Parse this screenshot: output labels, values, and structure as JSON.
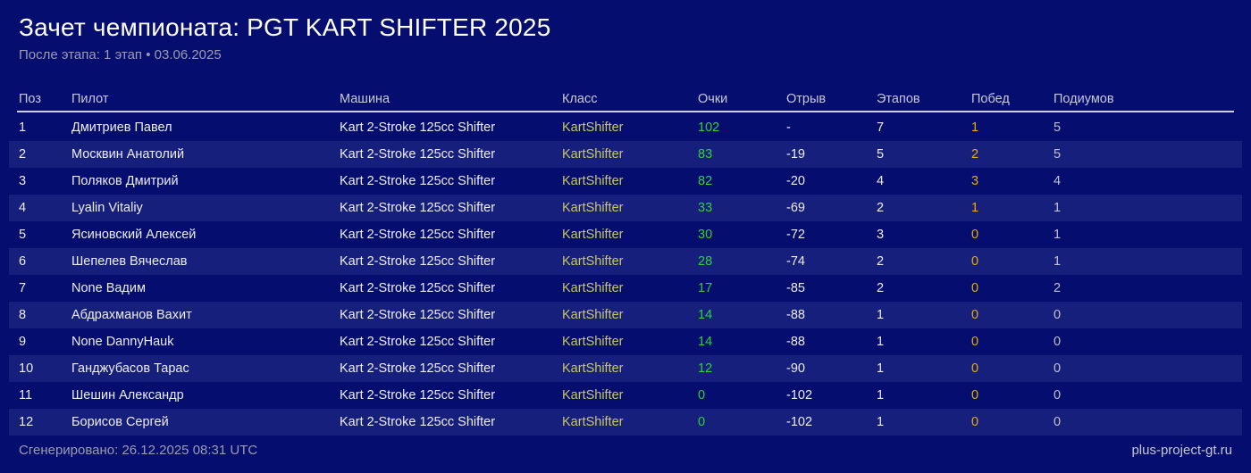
{
  "header": {
    "title": "Зачет чемпионата: PGT KART SHIFTER 2025",
    "subtitle": "После этапа: 1 этап • 03.06.2025"
  },
  "table": {
    "columns": [
      "Поз",
      "Пилот",
      "Машина",
      "Класс",
      "Очки",
      "Отрыв",
      "Этапов",
      "Побед",
      "Подиумов"
    ],
    "rows": [
      {
        "pos": "1",
        "pilot": "Дмитриев Павел",
        "car": "Kart 2-Stroke 125cc Shifter",
        "class": "KartShifter",
        "points": "102",
        "gap": "-",
        "stages": "7",
        "wins": "1",
        "podiums": "5"
      },
      {
        "pos": "2",
        "pilot": "Москвин Анатолий",
        "car": "Kart 2-Stroke 125cc Shifter",
        "class": "KartShifter",
        "points": "83",
        "gap": "-19",
        "stages": "5",
        "wins": "2",
        "podiums": "5"
      },
      {
        "pos": "3",
        "pilot": "Поляков Дмитрий",
        "car": "Kart 2-Stroke 125cc Shifter",
        "class": "KartShifter",
        "points": "82",
        "gap": "-20",
        "stages": "4",
        "wins": "3",
        "podiums": "4"
      },
      {
        "pos": "4",
        "pilot": "Lyalin Vitaliy",
        "car": "Kart 2-Stroke 125cc Shifter",
        "class": "KartShifter",
        "points": "33",
        "gap": "-69",
        "stages": "2",
        "wins": "1",
        "podiums": "1"
      },
      {
        "pos": "5",
        "pilot": "Ясиновский Алексей",
        "car": "Kart 2-Stroke 125cc Shifter",
        "class": "KartShifter",
        "points": "30",
        "gap": "-72",
        "stages": "3",
        "wins": "0",
        "podiums": "1"
      },
      {
        "pos": "6",
        "pilot": "Шепелев Вячеслав",
        "car": "Kart 2-Stroke 125cc Shifter",
        "class": "KartShifter",
        "points": "28",
        "gap": "-74",
        "stages": "2",
        "wins": "0",
        "podiums": "1"
      },
      {
        "pos": "7",
        "pilot": "None Вадим",
        "car": "Kart 2-Stroke 125cc Shifter",
        "class": "KartShifter",
        "points": "17",
        "gap": "-85",
        "stages": "2",
        "wins": "0",
        "podiums": "2"
      },
      {
        "pos": "8",
        "pilot": "Абдрахманов Вахит",
        "car": "Kart 2-Stroke 125cc Shifter",
        "class": "KartShifter",
        "points": "14",
        "gap": "-88",
        "stages": "1",
        "wins": "0",
        "podiums": "0"
      },
      {
        "pos": "9",
        "pilot": "None DannyHauk",
        "car": "Kart 2-Stroke 125cc Shifter",
        "class": "KartShifter",
        "points": "14",
        "gap": "-88",
        "stages": "1",
        "wins": "0",
        "podiums": "0"
      },
      {
        "pos": "10",
        "pilot": "Ганджубасов Тарас",
        "car": "Kart 2-Stroke 125cc Shifter",
        "class": "KartShifter",
        "points": "12",
        "gap": "-90",
        "stages": "1",
        "wins": "0",
        "podiums": "0"
      },
      {
        "pos": "11",
        "pilot": "Шешин Александр",
        "car": "Kart 2-Stroke 125cc Shifter",
        "class": "KartShifter",
        "points": "0",
        "gap": "-102",
        "stages": "1",
        "wins": "0",
        "podiums": "0"
      },
      {
        "pos": "12",
        "pilot": "Борисов Сергей",
        "car": "Kart 2-Stroke 125cc Shifter",
        "class": "KartShifter",
        "points": "0",
        "gap": "-102",
        "stages": "1",
        "wins": "0",
        "podiums": "0"
      }
    ]
  },
  "footer": {
    "generated": "Сгенерировано: 26.12.2025 08:31 UTC",
    "site": "plus-project-gt.ru"
  },
  "colors": {
    "bg": "#050e6e",
    "stripe": "#171f7d",
    "title": "#ffffff",
    "muted": "#9b9bb0",
    "header-text": "#c9c9d6",
    "divider": "#cfcfda",
    "cell-text": "#ecedf5",
    "class-yellow": "#c9c95f",
    "points-green": "#30d135",
    "wins-gold": "#e5ae00",
    "podium-gray": "#c2c2cf",
    "site-text": "#c6c6d2"
  }
}
